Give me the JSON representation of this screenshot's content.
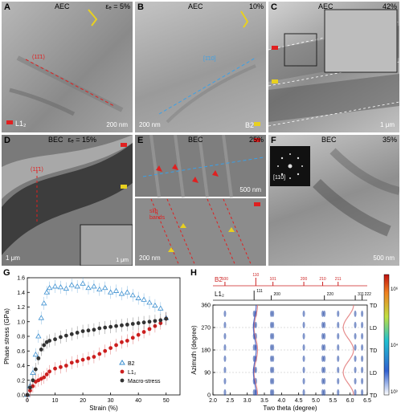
{
  "panels": {
    "A": {
      "letter": "A",
      "title": "AEC",
      "strain": "εₑ = 5%",
      "scale": "200 nm",
      "plane": "(11̄1)",
      "phase_label": "L1₂"
    },
    "B": {
      "letter": "B",
      "title": "AEC",
      "strain": "10%",
      "scale": "200 nm",
      "plane": "[1̄10]",
      "phase_label": "B2"
    },
    "C": {
      "letter": "C",
      "title": "AEC",
      "strain": "42%",
      "scale": "1 μm"
    },
    "D": {
      "letter": "D",
      "title": "BEC",
      "strain": "εₑ = 15%",
      "scale": "1 μm",
      "inset_scale": "1 μm",
      "plane": "(11̄1)"
    },
    "E": {
      "letter": "E",
      "title": "BEC",
      "strain": "25%",
      "scale_top": "500 nm",
      "scale_bottom": "200 nm",
      "annotation": "slip bands"
    },
    "F": {
      "letter": "F",
      "title": "BEC",
      "strain": "35%",
      "scale": "500 nm",
      "zone_axis": "[110]"
    }
  },
  "colors": {
    "b2": "#3b8fd0",
    "l12": "#cc1f1f",
    "macro": "#333333",
    "red_ann": "#e02020",
    "blue_ann": "#3aa0e8",
    "yellow_ann": "#e8d020"
  },
  "panel_g": {
    "letter": "G",
    "ylabel": "Phase stress (GPa)",
    "xlabel": "Strain (%)",
    "legend": [
      "B2",
      "L1₂",
      "Macro-stress"
    ]
  },
  "panel_h": {
    "letter": "H",
    "ylabel": "Azimuth (degree)",
    "xlabel": "Two theta (degree)",
    "b2_label": "B2",
    "l12_label": "L1₂",
    "b2_peaks": [
      "100",
      "110",
      "101",
      "200",
      "210",
      "211"
    ],
    "l12_peaks": [
      "111",
      "200",
      "220",
      "311",
      "222"
    ],
    "side_labels": [
      "TD",
      "LD",
      "TD",
      "LD",
      "TD"
    ],
    "colorbar_ticks": [
      "10⁶",
      "10⁴",
      "10³"
    ]
  },
  "chart_data": [
    {
      "type": "scatter",
      "title": "",
      "xlabel": "Strain (%)",
      "ylabel": "Phase stress (GPa)",
      "xlim": [
        0,
        55
      ],
      "ylim": [
        0.0,
        1.6
      ],
      "xticks": [
        0,
        10,
        20,
        30,
        40,
        50
      ],
      "yticks": [
        0.0,
        0.2,
        0.4,
        0.6,
        0.8,
        1.0,
        1.2,
        1.4,
        1.6
      ],
      "grid": false,
      "legend_position": "bottom-right",
      "series": [
        {
          "name": "B2",
          "marker": "triangle",
          "color": "#3b8fd0",
          "x": [
            0,
            1,
            2,
            3,
            4,
            5,
            6,
            7,
            8,
            10,
            12,
            14,
            16,
            18,
            20,
            22,
            24,
            26,
            28,
            30,
            32,
            34,
            36,
            38,
            40,
            42,
            44,
            46,
            48,
            50
          ],
          "y": [
            0.0,
            0.12,
            0.3,
            0.55,
            0.8,
            1.05,
            1.25,
            1.4,
            1.46,
            1.48,
            1.47,
            1.45,
            1.5,
            1.48,
            1.52,
            1.46,
            1.48,
            1.44,
            1.46,
            1.4,
            1.42,
            1.38,
            1.4,
            1.36,
            1.32,
            1.3,
            1.26,
            1.22,
            1.18,
            1.05
          ]
        },
        {
          "name": "L1₂",
          "marker": "circle",
          "color": "#cc1f1f",
          "x": [
            0,
            1,
            2,
            3,
            4,
            5,
            6,
            7,
            8,
            10,
            12,
            14,
            16,
            18,
            20,
            22,
            24,
            26,
            28,
            30,
            32,
            34,
            36,
            38,
            40,
            42,
            44,
            46,
            48,
            50
          ],
          "y": [
            0.0,
            0.06,
            0.12,
            0.18,
            0.2,
            0.22,
            0.24,
            0.28,
            0.32,
            0.36,
            0.38,
            0.4,
            0.44,
            0.46,
            0.48,
            0.5,
            0.52,
            0.56,
            0.6,
            0.64,
            0.68,
            0.72,
            0.74,
            0.78,
            0.82,
            0.86,
            0.9,
            0.94,
            0.98,
            1.04
          ]
        },
        {
          "name": "Macro-stress",
          "marker": "hexagon",
          "color": "#333333",
          "x": [
            0,
            1,
            2,
            3,
            4,
            5,
            6,
            7,
            8,
            10,
            12,
            14,
            16,
            18,
            20,
            22,
            24,
            26,
            28,
            30,
            32,
            34,
            36,
            38,
            40,
            42,
            44,
            46,
            48,
            50
          ],
          "y": [
            0.0,
            0.1,
            0.2,
            0.35,
            0.5,
            0.62,
            0.68,
            0.72,
            0.74,
            0.76,
            0.79,
            0.81,
            0.83,
            0.85,
            0.87,
            0.88,
            0.89,
            0.91,
            0.92,
            0.93,
            0.94,
            0.95,
            0.96,
            0.97,
            0.98,
            0.99,
            1.0,
            1.01,
            1.02,
            1.04
          ]
        }
      ]
    },
    {
      "type": "heatmap",
      "title": "",
      "xlabel": "Two theta (degree)",
      "ylabel": "Azimuth (degree)",
      "xlim": [
        2.0,
        6.5
      ],
      "ylim": [
        0,
        360
      ],
      "xticks": [
        2.0,
        2.5,
        3.0,
        3.5,
        4.0,
        4.5,
        5.0,
        5.5,
        6.0,
        6.5
      ],
      "yticks": [
        0,
        90,
        180,
        270,
        360
      ],
      "colorbar": [
        "10⁶",
        "10⁴",
        "10³"
      ],
      "b2_peak_positions": [
        2.35,
        3.25,
        3.75,
        4.65,
        5.2,
        5.65
      ],
      "l12_peak_positions": [
        3.2,
        3.7,
        5.25,
        6.15,
        6.35
      ]
    }
  ]
}
